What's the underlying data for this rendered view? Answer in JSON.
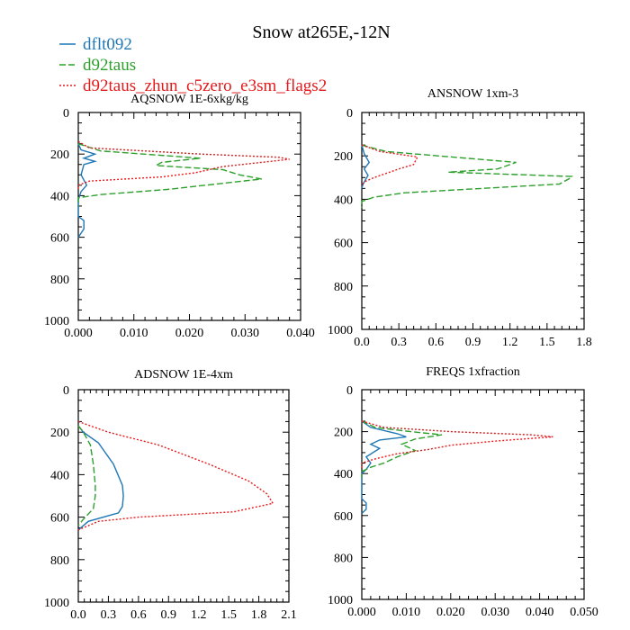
{
  "figure": {
    "title": "Snow at265E,-12N"
  },
  "legend": [
    {
      "label": "dflt092",
      "color": "#1f77b4",
      "dash": "solid"
    },
    {
      "label": "d92taus",
      "color": "#2ca02c",
      "dash": "dashed"
    },
    {
      "label": "d92taus_zhun_c5zero_e3sm_flags2",
      "color": "#e31a1c",
      "dash": "dotted"
    }
  ],
  "chart_data": [
    {
      "type": "line",
      "title": "AQSNOW  1E-6xkg/kg",
      "xlabel": "",
      "ylabel": "",
      "xlim": [
        0,
        0.04
      ],
      "ylim": [
        1000,
        0
      ],
      "xticks": [
        "0.000",
        "0.010",
        "0.020",
        "0.030",
        "0.040"
      ],
      "yticks": [
        "0",
        "200",
        "400",
        "600",
        "800",
        "1000"
      ],
      "series": [
        {
          "name": "dflt092",
          "points": [
            [
              0,
              150
            ],
            [
              0.0005,
              180
            ],
            [
              0.003,
              200
            ],
            [
              0.001,
              220
            ],
            [
              0.003,
              235
            ],
            [
              0.001,
              250
            ],
            [
              0.0005,
              300
            ],
            [
              0.0015,
              350
            ],
            [
              0.0005,
              380
            ],
            [
              0,
              420
            ],
            [
              0,
              500
            ],
            [
              0.001,
              520
            ],
            [
              0.001,
              560
            ],
            [
              0,
              600
            ]
          ]
        },
        {
          "name": "d92taus",
          "points": [
            [
              0,
              150
            ],
            [
              0.004,
              185
            ],
            [
              0.022,
              220
            ],
            [
              0.015,
              240
            ],
            [
              0.014,
              255
            ],
            [
              0.026,
              275
            ],
            [
              0.029,
              300
            ],
            [
              0.033,
              320
            ],
            [
              0.016,
              370
            ],
            [
              0.004,
              395
            ],
            [
              0,
              410
            ],
            [
              0,
              450
            ]
          ]
        },
        {
          "name": "d92taus_zhun_c5zero_e3sm_flags2",
          "points": [
            [
              0,
              140
            ],
            [
              0.002,
              170
            ],
            [
              0.022,
              200
            ],
            [
              0.036,
              215
            ],
            [
              0.038,
              225
            ],
            [
              0.026,
              260
            ],
            [
              0.021,
              290
            ],
            [
              0.015,
              310
            ],
            [
              0.002,
              330
            ],
            [
              0,
              350
            ],
            [
              0,
              370
            ]
          ]
        }
      ]
    },
    {
      "type": "line",
      "title": "ANSNOW  1xm-3",
      "xlabel": "",
      "ylabel": "",
      "xlim": [
        0,
        1.8
      ],
      "ylim": [
        1000,
        0
      ],
      "xticks": [
        "0.0",
        "0.3",
        "0.6",
        "0.9",
        "1.2",
        "1.5",
        "1.8"
      ],
      "yticks": [
        "0",
        "200",
        "400",
        "600",
        "800",
        "1000"
      ],
      "series": [
        {
          "name": "dflt092",
          "points": [
            [
              0,
              150
            ],
            [
              0.02,
              190
            ],
            [
              0.06,
              230
            ],
            [
              0.02,
              260
            ],
            [
              0.05,
              290
            ],
            [
              0.01,
              330
            ],
            [
              0,
              350
            ]
          ]
        },
        {
          "name": "d92taus",
          "points": [
            [
              0,
              150
            ],
            [
              0.2,
              180
            ],
            [
              1.25,
              230
            ],
            [
              1.1,
              260
            ],
            [
              0.7,
              275
            ],
            [
              1.7,
              295
            ],
            [
              1.68,
              305
            ],
            [
              1.6,
              330
            ],
            [
              0.35,
              370
            ],
            [
              0.1,
              390
            ],
            [
              0,
              410
            ],
            [
              0,
              440
            ]
          ]
        },
        {
          "name": "d92taus_zhun_c5zero_e3sm_flags2",
          "points": [
            [
              0,
              150
            ],
            [
              0.15,
              180
            ],
            [
              0.45,
              205
            ],
            [
              0.42,
              240
            ],
            [
              0.3,
              260
            ],
            [
              0.1,
              300
            ],
            [
              0.02,
              320
            ],
            [
              0,
              340
            ]
          ]
        }
      ]
    },
    {
      "type": "line",
      "title": "ADSNOW  1E-4xm",
      "xlabel": "",
      "ylabel": "",
      "xlim": [
        0,
        2.1
      ],
      "ylim": [
        1000,
        0
      ],
      "xticks": [
        "0.0",
        "0.3",
        "0.6",
        "0.9",
        "1.2",
        "1.5",
        "1.8",
        "2.1"
      ],
      "yticks": [
        "0",
        "200",
        "400",
        "600",
        "800",
        "1000"
      ],
      "series": [
        {
          "name": "dflt092",
          "points": [
            [
              0,
              170
            ],
            [
              0.05,
              200
            ],
            [
              0.2,
              250
            ],
            [
              0.35,
              350
            ],
            [
              0.44,
              450
            ],
            [
              0.45,
              500
            ],
            [
              0.44,
              550
            ],
            [
              0.4,
              580
            ],
            [
              0.1,
              620
            ],
            [
              0,
              660
            ]
          ]
        },
        {
          "name": "d92taus",
          "points": [
            [
              0,
              170
            ],
            [
              0.05,
              200
            ],
            [
              0.12,
              260
            ],
            [
              0.15,
              350
            ],
            [
              0.17,
              450
            ],
            [
              0.17,
              500
            ],
            [
              0.15,
              560
            ],
            [
              0.05,
              610
            ],
            [
              0,
              640
            ]
          ]
        },
        {
          "name": "d92taus_zhun_c5zero_e3sm_flags2",
          "points": [
            [
              0,
              150
            ],
            [
              0.3,
              200
            ],
            [
              0.8,
              260
            ],
            [
              1.3,
              350
            ],
            [
              1.7,
              430
            ],
            [
              1.88,
              490
            ],
            [
              1.94,
              535
            ],
            [
              1.55,
              575
            ],
            [
              0.6,
              600
            ],
            [
              0.2,
              620
            ],
            [
              0,
              660
            ]
          ]
        }
      ]
    },
    {
      "type": "line",
      "title": "FREQS  1xfraction",
      "xlabel": "",
      "ylabel": "",
      "xlim": [
        0,
        0.05
      ],
      "ylim": [
        1000,
        0
      ],
      "xticks": [
        "0.000",
        "0.010",
        "0.020",
        "0.030",
        "0.040",
        "0.050"
      ],
      "yticks": [
        "0",
        "200",
        "400",
        "600",
        "800",
        "1000"
      ],
      "series": [
        {
          "name": "dflt092",
          "points": [
            [
              0,
              150
            ],
            [
              0.002,
              180
            ],
            [
              0.008,
              210
            ],
            [
              0.01,
              225
            ],
            [
              0.004,
              240
            ],
            [
              0.002,
              260
            ],
            [
              0.004,
              280
            ],
            [
              0.001,
              320
            ],
            [
              0.002,
              350
            ],
            [
              0.001,
              380
            ],
            [
              0,
              400
            ],
            [
              0,
              520
            ],
            [
              0.001,
              540
            ],
            [
              0.001,
              570
            ],
            [
              0,
              590
            ]
          ]
        },
        {
          "name": "d92taus",
          "points": [
            [
              0,
              150
            ],
            [
              0.003,
              180
            ],
            [
              0.011,
              200
            ],
            [
              0.018,
              215
            ],
            [
              0.012,
              235
            ],
            [
              0.009,
              260
            ],
            [
              0.012,
              290
            ],
            [
              0.008,
              320
            ],
            [
              0.005,
              350
            ],
            [
              0.002,
              370
            ],
            [
              0,
              390
            ],
            [
              0,
              420
            ]
          ]
        },
        {
          "name": "d92taus_zhun_c5zero_e3sm_flags2",
          "points": [
            [
              0,
              150
            ],
            [
              0.005,
              180
            ],
            [
              0.02,
              200
            ],
            [
              0.038,
              215
            ],
            [
              0.043,
              225
            ],
            [
              0.03,
              245
            ],
            [
              0.02,
              265
            ],
            [
              0.015,
              285
            ],
            [
              0.008,
              305
            ],
            [
              0.003,
              330
            ],
            [
              0,
              350
            ],
            [
              0,
              380
            ]
          ]
        }
      ]
    }
  ]
}
